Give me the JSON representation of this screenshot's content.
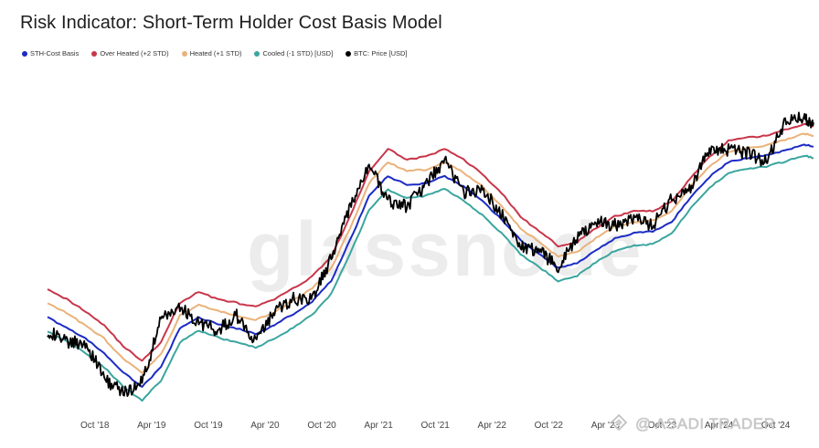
{
  "title": "Risk Indicator: Short-Term Holder Cost Basis Model",
  "watermark": {
    "brand": "glassnode",
    "author": "ASADI TRADER"
  },
  "legend": [
    {
      "label": "STH-Cost Basis",
      "color": "#1b2bc4"
    },
    {
      "label": "Over Heated (+2 STD)",
      "color": "#c8364a"
    },
    {
      "label": "Heated (+1 STD)",
      "color": "#eab27a"
    },
    {
      "label": "Cooled (-1 STD) [USD]",
      "color": "#3aa69e"
    },
    {
      "label": "BTC: Price [USD]",
      "color": "#000000"
    }
  ],
  "chart_data": {
    "type": "line",
    "title": "Risk Indicator: Short-Term Holder Cost Basis Model",
    "xlabel": "",
    "ylabel": "",
    "scale": "log",
    "grid": false,
    "legend_position": "top-left",
    "tick_labels": [
      "Oct '18",
      "Apr '19",
      "Oct '19",
      "Apr '20",
      "Oct '20",
      "Apr '21",
      "Oct '21",
      "Apr '22",
      "Oct '22",
      "Apr '23",
      "Oct '23",
      "Apr '24",
      "Oct '24"
    ],
    "x": [
      "2018-05",
      "2018-07",
      "2018-09",
      "2018-11",
      "2019-01",
      "2019-03",
      "2019-05",
      "2019-07",
      "2019-09",
      "2019-11",
      "2020-01",
      "2020-03",
      "2020-05",
      "2020-07",
      "2020-09",
      "2020-11",
      "2021-01",
      "2021-03",
      "2021-05",
      "2021-07",
      "2021-09",
      "2021-11",
      "2022-01",
      "2022-03",
      "2022-05",
      "2022-07",
      "2022-09",
      "2022-11",
      "2023-01",
      "2023-03",
      "2023-05",
      "2023-07",
      "2023-09",
      "2023-11",
      "2024-01",
      "2024-03",
      "2024-05",
      "2024-07",
      "2024-09",
      "2024-11",
      "2025-01",
      "2025-02"
    ],
    "series": [
      {
        "name": "Over Heated (+2 STD)",
        "color": "#c8364a",
        "values": [
          12500,
          11000,
          9500,
          8000,
          6200,
          5200,
          6500,
          10500,
          12000,
          11000,
          10500,
          10000,
          11000,
          12500,
          14500,
          18500,
          30000,
          52000,
          68000,
          60000,
          62000,
          68000,
          60000,
          50000,
          40000,
          30000,
          25000,
          21000,
          22000,
          26000,
          30000,
          32000,
          32000,
          36000,
          48000,
          62000,
          75000,
          78000,
          80000,
          86000,
          92000,
          90000
        ]
      },
      {
        "name": "Heated (+1 STD)",
        "color": "#eab27a",
        "values": [
          10500,
          9300,
          8000,
          6800,
          5300,
          4500,
          5600,
          9000,
          10300,
          9500,
          9000,
          8500,
          9400,
          10800,
          12500,
          16000,
          26000,
          45000,
          58000,
          52000,
          53000,
          58000,
          51000,
          43000,
          34000,
          26000,
          22000,
          18500,
          19500,
          23000,
          26500,
          28000,
          28500,
          32000,
          43000,
          55000,
          66000,
          69000,
          71000,
          76000,
          82000,
          80000
        ]
      },
      {
        "name": "STH-Cost Basis",
        "color": "#1b2bc4",
        "values": [
          8800,
          7800,
          6800,
          5700,
          4500,
          3800,
          4800,
          7700,
          8800,
          8100,
          7700,
          7200,
          8000,
          9200,
          10700,
          13700,
          22500,
          38500,
          49000,
          44000,
          45000,
          49000,
          43000,
          36000,
          29000,
          22500,
          19000,
          16000,
          17000,
          20000,
          23000,
          24500,
          25000,
          28000,
          38000,
          48500,
          58000,
          61000,
          63000,
          67000,
          72000,
          70000
        ]
      },
      {
        "name": "Cooled (-1 STD) [USD]",
        "color": "#3aa69e",
        "values": [
          7400,
          6600,
          5700,
          4800,
          3800,
          3200,
          4100,
          6500,
          7500,
          6900,
          6500,
          6100,
          6800,
          7800,
          9100,
          11700,
          19000,
          32500,
          41500,
          37500,
          38500,
          42000,
          36500,
          30500,
          24500,
          19000,
          16200,
          13700,
          14600,
          17200,
          19800,
          21000,
          21500,
          24500,
          33000,
          42500,
          51000,
          53500,
          55000,
          58500,
          63000,
          61000
        ]
      },
      {
        "name": "BTC: Price [USD]",
        "color": "#000000",
        "values": [
          7500,
          6500,
          6500,
          4200,
          3500,
          4000,
          8500,
          10000,
          8300,
          7500,
          9000,
          6500,
          9500,
          11000,
          11000,
          18000,
          33000,
          57000,
          36000,
          34000,
          44000,
          60000,
          40000,
          42000,
          31000,
          21000,
          19500,
          16500,
          23000,
          28000,
          27000,
          29500,
          27000,
          37000,
          42000,
          68000,
          67000,
          65000,
          58000,
          95000,
          100000,
          94000
        ]
      }
    ]
  }
}
